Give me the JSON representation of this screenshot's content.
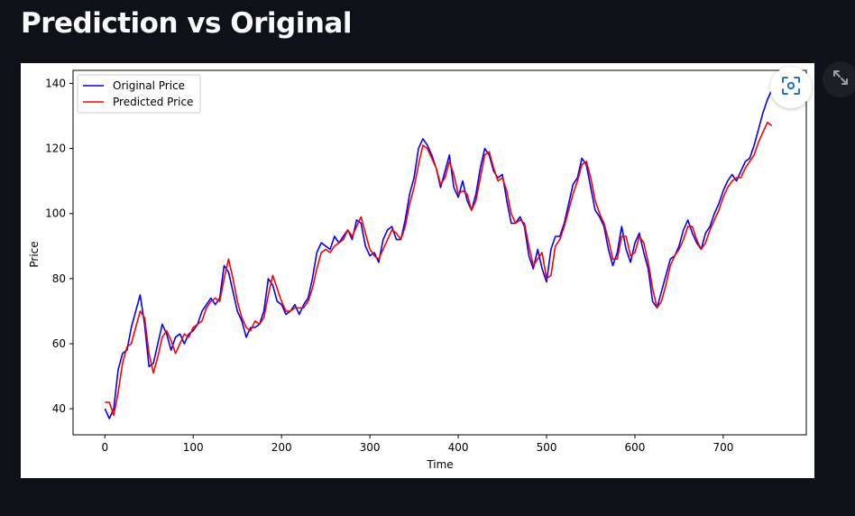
{
  "page": {
    "title": "Prediction vs Original"
  },
  "toolbar": {
    "fullscreen_icon": "focus-frame-icon",
    "expand_icon": "expand-arrows-icon"
  },
  "colors": {
    "background": "#0e1117",
    "original": "#0000ff",
    "predicted": "#ff0000"
  },
  "chart_data": {
    "type": "line",
    "title": "",
    "xlabel": "Time",
    "ylabel": "Price",
    "xlim": [
      -36,
      794
    ],
    "ylim": [
      32,
      144
    ],
    "xticks": [
      0,
      100,
      200,
      300,
      400,
      500,
      600,
      700
    ],
    "yticks": [
      40,
      60,
      80,
      100,
      120,
      140
    ],
    "grid": false,
    "legend_position": "top-left",
    "series": [
      {
        "name": "Original Price",
        "color": "#0000ff",
        "x": [
          0,
          5,
          10,
          15,
          20,
          25,
          30,
          35,
          40,
          45,
          50,
          55,
          60,
          65,
          70,
          75,
          80,
          85,
          90,
          95,
          100,
          105,
          110,
          115,
          120,
          125,
          130,
          135,
          140,
          145,
          150,
          155,
          160,
          165,
          170,
          175,
          180,
          185,
          190,
          195,
          200,
          205,
          210,
          215,
          220,
          225,
          230,
          235,
          240,
          245,
          250,
          255,
          260,
          265,
          270,
          275,
          280,
          285,
          290,
          295,
          300,
          305,
          310,
          315,
          320,
          325,
          330,
          335,
          340,
          345,
          350,
          355,
          360,
          365,
          370,
          375,
          380,
          385,
          390,
          395,
          400,
          405,
          410,
          415,
          420,
          425,
          430,
          435,
          440,
          445,
          450,
          455,
          460,
          465,
          470,
          475,
          480,
          485,
          490,
          495,
          500,
          505,
          510,
          515,
          520,
          525,
          530,
          535,
          540,
          545,
          550,
          555,
          560,
          565,
          570,
          575,
          580,
          585,
          590,
          595,
          600,
          605,
          610,
          615,
          620,
          625,
          630,
          635,
          640,
          645,
          650,
          655,
          660,
          665,
          670,
          675,
          680,
          685,
          690,
          695,
          700,
          705,
          710,
          715,
          720,
          725,
          730,
          735,
          740,
          745,
          750,
          755
        ],
        "y": [
          40,
          37,
          40,
          52,
          57,
          58,
          65,
          70,
          75,
          66,
          53,
          54,
          60,
          66,
          63,
          58,
          62,
          63,
          60,
          63,
          64,
          66,
          70,
          72,
          74,
          72,
          74,
          84,
          82,
          76,
          70,
          67,
          62,
          65,
          65,
          66,
          70,
          80,
          78,
          73,
          72,
          69,
          70,
          72,
          69,
          72,
          74,
          80,
          88,
          91,
          90,
          89,
          93,
          91,
          93,
          95,
          92,
          98,
          97,
          90,
          87,
          88,
          85,
          92,
          95,
          96,
          92,
          92,
          98,
          106,
          111,
          120,
          123,
          121,
          118,
          114,
          108,
          113,
          118,
          108,
          105,
          110,
          104,
          101,
          106,
          114,
          120,
          118,
          113,
          111,
          112,
          104,
          97,
          97,
          99,
          96,
          87,
          83,
          89,
          83,
          79,
          89,
          93,
          93,
          97,
          103,
          109,
          111,
          117,
          115,
          108,
          101,
          99,
          96,
          89,
          84,
          88,
          96,
          89,
          85,
          91,
          94,
          88,
          83,
          73,
          71,
          76,
          81,
          86,
          87,
          90,
          95,
          98,
          94,
          91,
          89,
          94,
          96,
          100,
          103,
          107,
          110,
          112,
          110,
          113,
          116,
          117,
          121,
          126,
          131,
          135,
          138
        ]
      },
      {
        "name": "Predicted Price",
        "color": "#ff0000",
        "x": [
          0,
          5,
          10,
          15,
          20,
          25,
          30,
          35,
          40,
          45,
          50,
          55,
          60,
          65,
          70,
          75,
          80,
          85,
          90,
          95,
          100,
          105,
          110,
          115,
          120,
          125,
          130,
          135,
          140,
          145,
          150,
          155,
          160,
          165,
          170,
          175,
          180,
          185,
          190,
          195,
          200,
          205,
          210,
          215,
          220,
          225,
          230,
          235,
          240,
          245,
          250,
          255,
          260,
          265,
          270,
          275,
          280,
          285,
          290,
          295,
          300,
          305,
          310,
          315,
          320,
          325,
          330,
          335,
          340,
          345,
          350,
          355,
          360,
          365,
          370,
          375,
          380,
          385,
          390,
          395,
          400,
          405,
          410,
          415,
          420,
          425,
          430,
          435,
          440,
          445,
          450,
          455,
          460,
          465,
          470,
          475,
          480,
          485,
          490,
          495,
          500,
          505,
          510,
          515,
          520,
          525,
          530,
          535,
          540,
          545,
          550,
          555,
          560,
          565,
          570,
          575,
          580,
          585,
          590,
          595,
          600,
          605,
          610,
          615,
          620,
          625,
          630,
          635,
          640,
          645,
          650,
          655,
          660,
          665,
          670,
          675,
          680,
          685,
          690,
          695,
          700,
          705,
          710,
          715,
          720,
          725,
          730,
          735,
          740,
          745,
          750,
          755
        ],
        "y": [
          42,
          42,
          38,
          45,
          54,
          59,
          60,
          65,
          70,
          68,
          57,
          51,
          56,
          62,
          64,
          61,
          57,
          60,
          63,
          62,
          65,
          66,
          67,
          71,
          73,
          74,
          73,
          80,
          86,
          80,
          73,
          68,
          65,
          64,
          67,
          66,
          68,
          75,
          81,
          77,
          73,
          70,
          70,
          71,
          71,
          71,
          73,
          77,
          83,
          88,
          89,
          88,
          90,
          91,
          92,
          95,
          93,
          96,
          99,
          94,
          89,
          87,
          86,
          89,
          92,
          95,
          94,
          92,
          96,
          103,
          108,
          115,
          121,
          120,
          117,
          114,
          109,
          111,
          116,
          112,
          106,
          107,
          106,
          101,
          104,
          111,
          118,
          119,
          114,
          110,
          111,
          107,
          100,
          97,
          98,
          97,
          90,
          84,
          86,
          88,
          80,
          81,
          90,
          92,
          96,
          101,
          106,
          110,
          115,
          116,
          111,
          104,
          100,
          97,
          92,
          86,
          86,
          93,
          93,
          87,
          88,
          93,
          91,
          85,
          77,
          71,
          73,
          78,
          84,
          87,
          89,
          92,
          96,
          96,
          92,
          89,
          91,
          95,
          98,
          101,
          105,
          108,
          110,
          111,
          111,
          114,
          116,
          118,
          122,
          125,
          128,
          127
        ]
      }
    ]
  }
}
